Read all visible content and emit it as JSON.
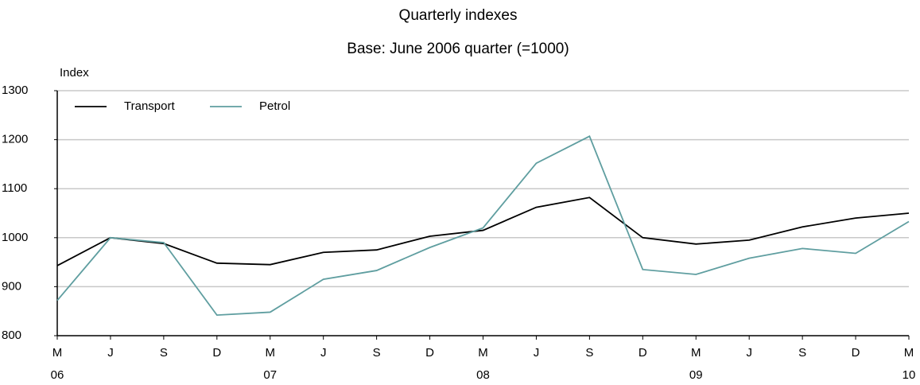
{
  "chart_data": {
    "type": "line",
    "title": "Quarterly indexes",
    "subtitle": "Base: June 2006 quarter (=1000)",
    "y_label": "Index",
    "categories": [
      "M",
      "J",
      "S",
      "D",
      "M",
      "J",
      "S",
      "D",
      "M",
      "J",
      "S",
      "D",
      "M",
      "J",
      "S",
      "D",
      "M"
    ],
    "year_labels": [
      "06",
      null,
      null,
      null,
      "07",
      null,
      null,
      null,
      "08",
      null,
      null,
      null,
      "09",
      null,
      null,
      null,
      "10"
    ],
    "series": [
      {
        "name": "Transport",
        "color": "#000000",
        "values": [
          943,
          1000,
          988,
          948,
          945,
          970,
          975,
          1003,
          1015,
          1062,
          1082,
          1000,
          987,
          995,
          1022,
          1040,
          1050
        ]
      },
      {
        "name": "Petrol",
        "color": "#5f9ea0",
        "values": [
          872,
          1000,
          990,
          842,
          848,
          915,
          933,
          980,
          1020,
          1152,
          1207,
          935,
          925,
          958,
          978,
          968,
          1033
        ]
      }
    ],
    "ylim": [
      800,
      1300
    ],
    "yticks": [
      800,
      900,
      1000,
      1100,
      1200,
      1300
    ],
    "grid": true,
    "legend": "top-left"
  }
}
